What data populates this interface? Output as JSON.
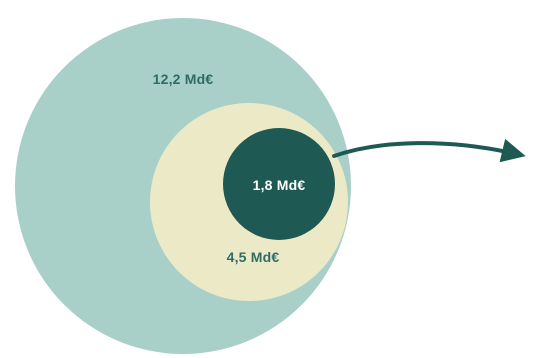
{
  "colors": {
    "background": "#ffffff",
    "outer_circle": "#a9cfc9",
    "middle_circle": "#ece9c6",
    "inner_circle": "#1e5a53",
    "arrow": "#1e5a53",
    "label_dark": "#2f6c66",
    "label_light": "#ffffff"
  },
  "circles": [
    {
      "id": "outer",
      "label": "12,2 Md€",
      "value": 12.2
    },
    {
      "id": "middle",
      "label": "4,5 Md€",
      "value": 4.5
    },
    {
      "id": "inner",
      "label": "1,8 Md€",
      "value": 1.8
    }
  ]
}
